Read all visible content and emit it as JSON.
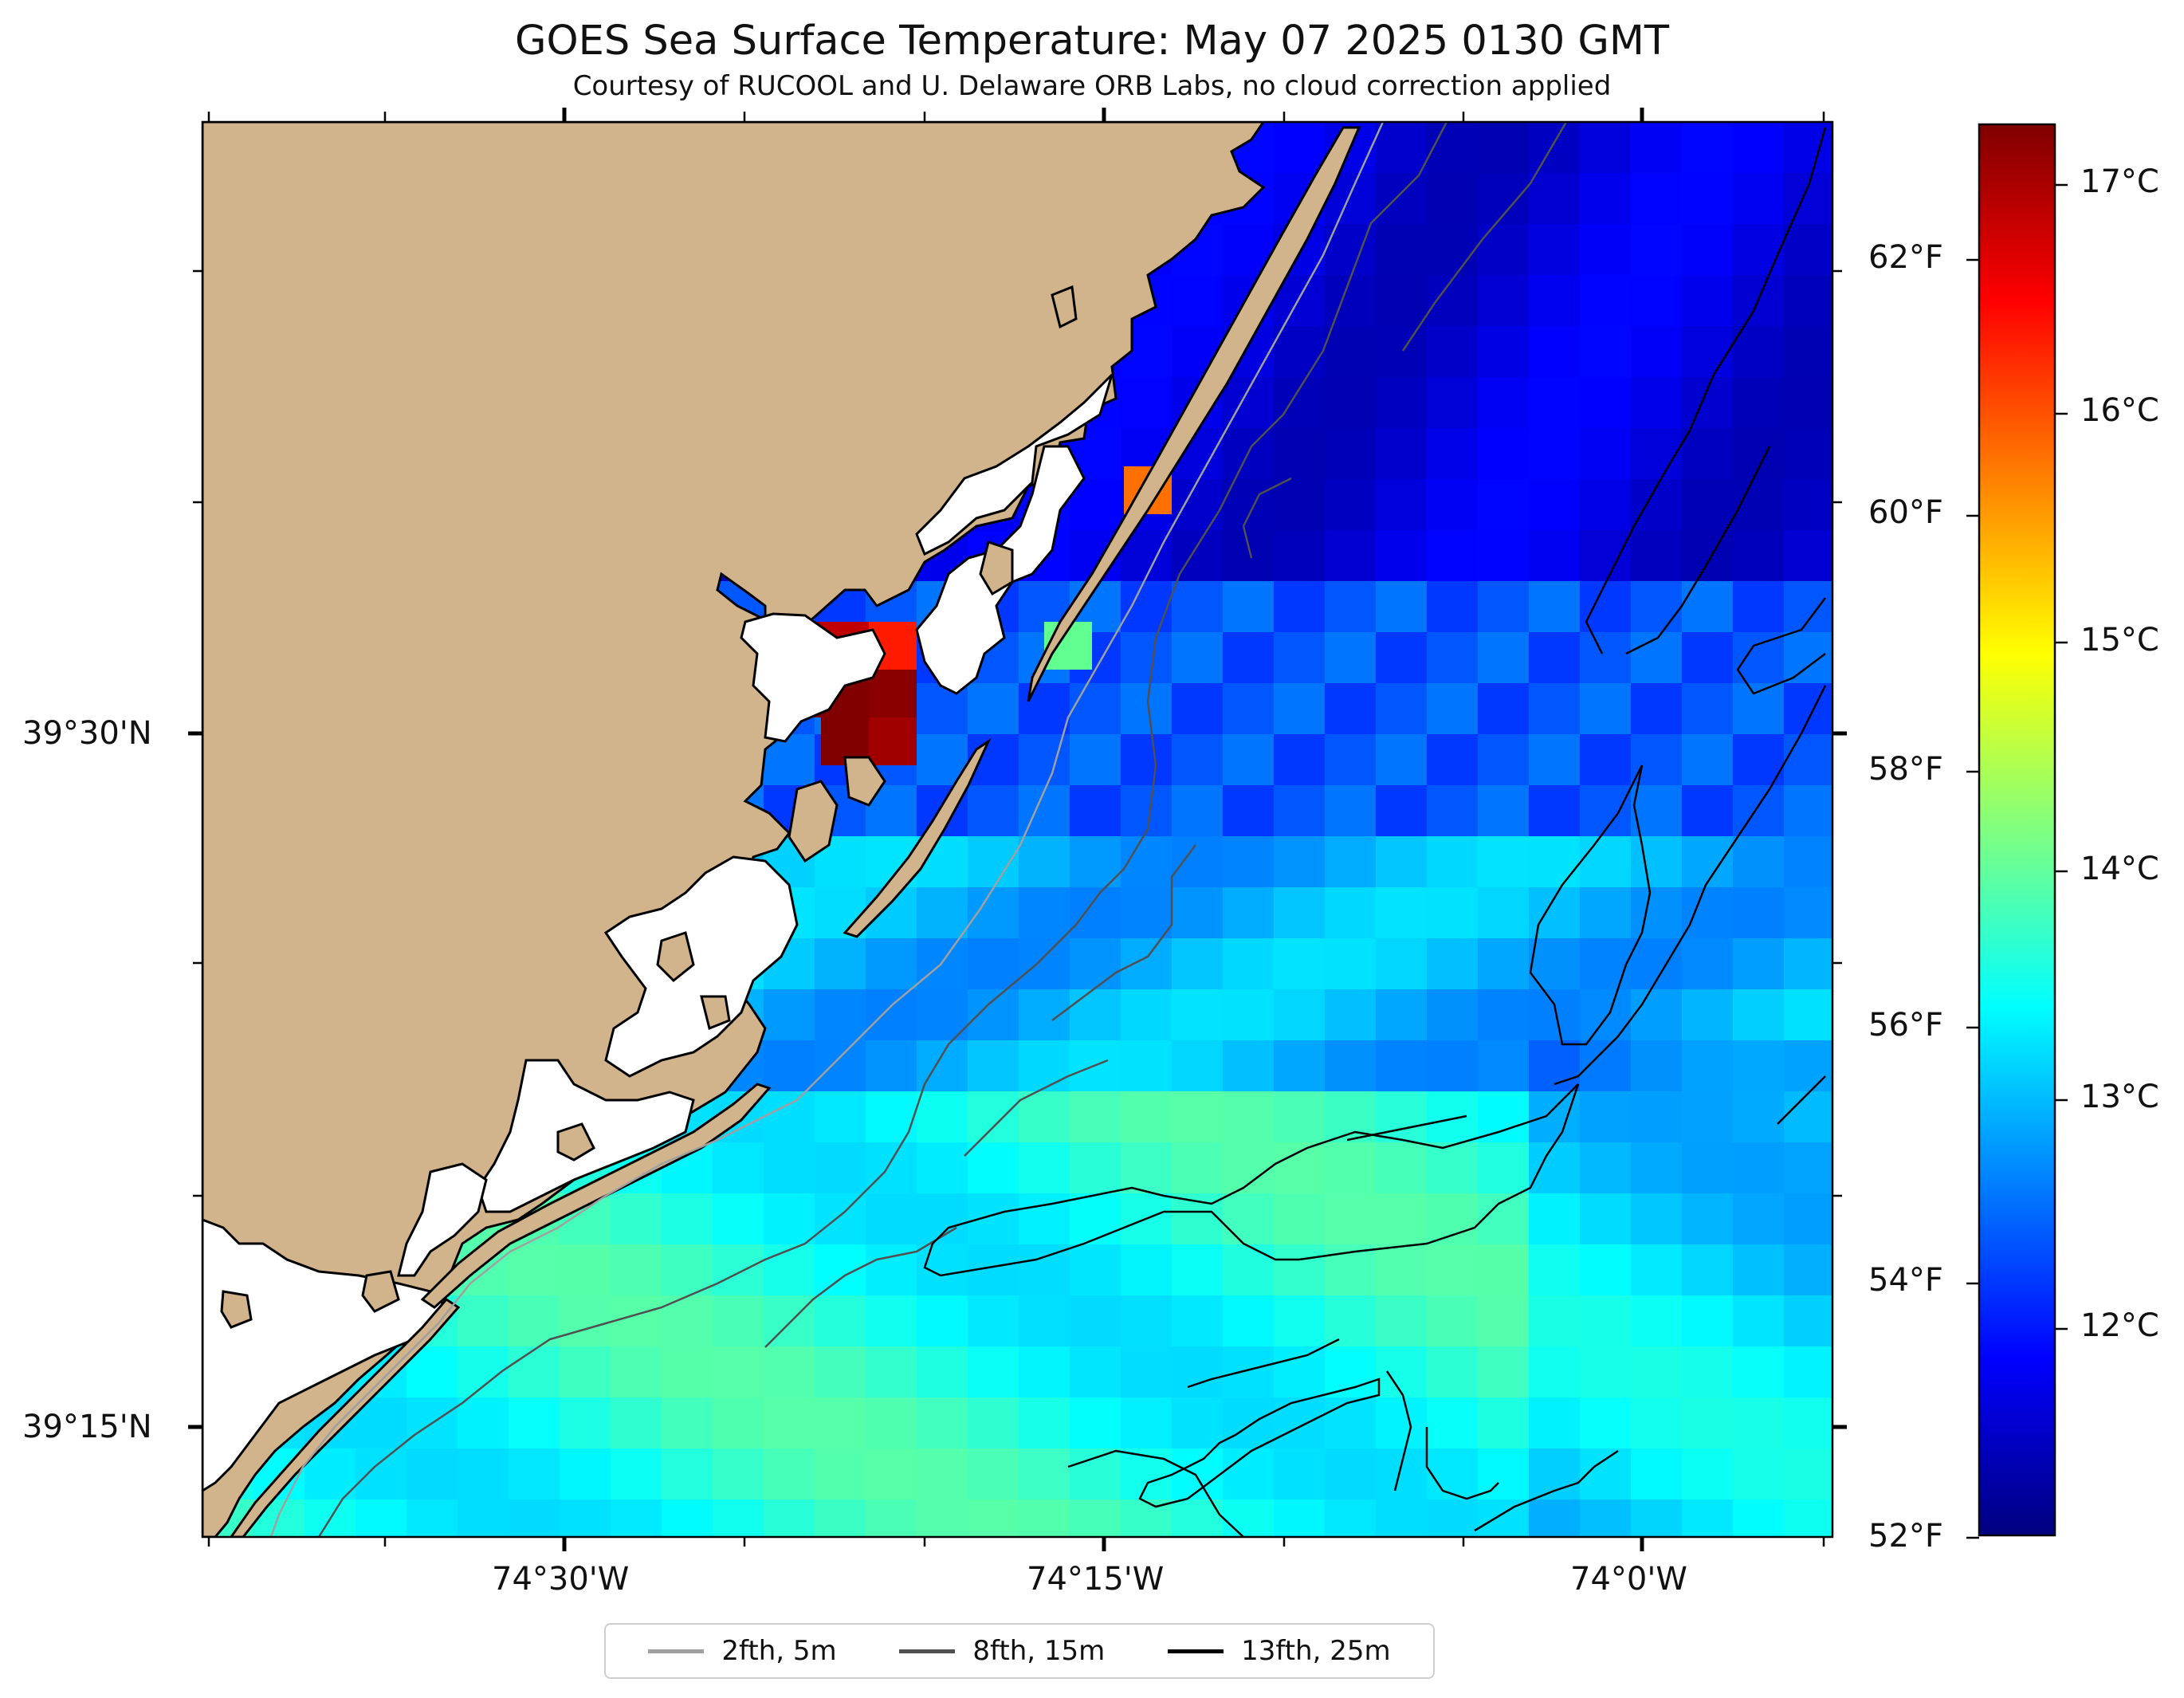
{
  "title": "GOES Sea Surface Temperature: May 07 2025 0130 GMT",
  "subtitle": "Courtesy of RUCOOL and U. Delaware ORB Labs, no cloud correction applied",
  "map": {
    "lat_labels": [
      "39°30'N",
      "39°15'N"
    ],
    "lon_labels": [
      "74°30'W",
      "74°15'W",
      "74°0'W"
    ],
    "land_color": "#d2b48c",
    "coast_color": "#000000"
  },
  "colorbar": {
    "colormap": "jet",
    "range_c": [
      11.1,
      17.3
    ],
    "celsius_ticks": [
      "17°C",
      "16°C",
      "15°C",
      "14°C",
      "13°C",
      "12°C"
    ],
    "fahrenheit_ticks": [
      "62°F",
      "60°F",
      "58°F",
      "56°F",
      "54°F",
      "52°F"
    ]
  },
  "legend": {
    "items": [
      {
        "label": "2fth, 5m",
        "color": "#a0a0a0"
      },
      {
        "label": "8fth, 15m",
        "color": "#505050"
      },
      {
        "label": "13fth, 25m",
        "color": "#000000"
      }
    ]
  }
}
